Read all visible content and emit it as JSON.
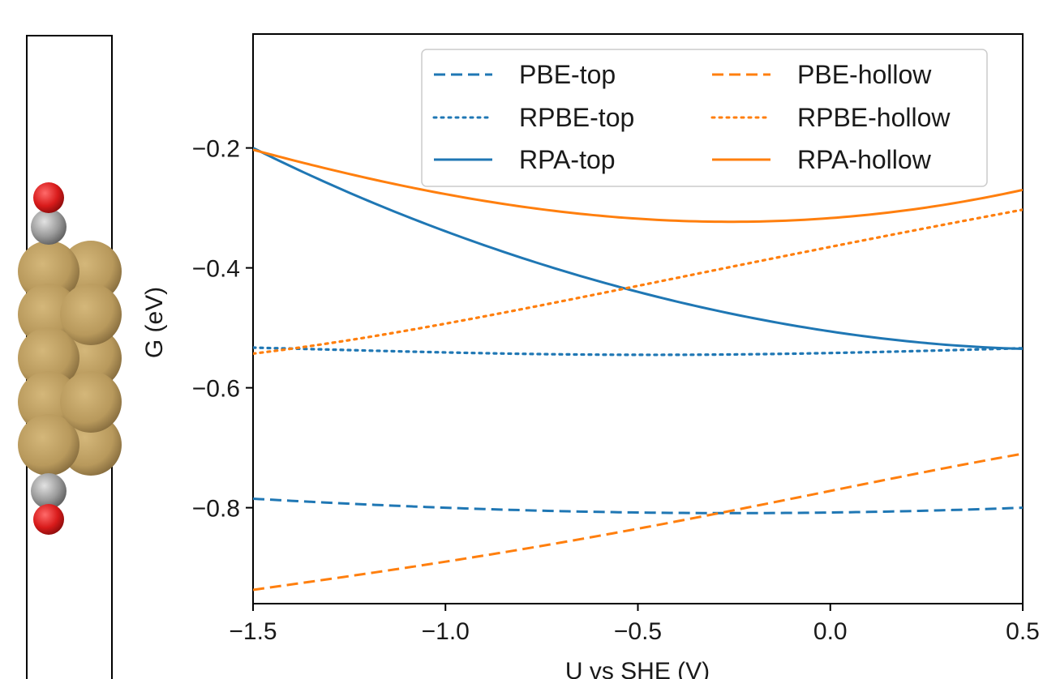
{
  "chart_data": {
    "type": "line",
    "title": "",
    "xlabel": "U vs SHE (V)",
    "ylabel": "G (eV)",
    "xlim": [
      -1.5,
      0.5
    ],
    "ylim": [
      -0.96,
      -0.01
    ],
    "x_ticks": [
      -1.5,
      -1.0,
      -0.5,
      0.0,
      0.5
    ],
    "x_tick_labels": [
      "−1.5",
      "−1.0",
      "−0.5",
      "0.0",
      "0.5"
    ],
    "y_ticks": [
      -0.2,
      -0.4,
      -0.6,
      -0.8
    ],
    "y_tick_labels": [
      "−0.2",
      "−0.4",
      "−0.6",
      "−0.8"
    ],
    "grid": false,
    "legend_position": "top-right",
    "legend_columns": 2,
    "x": [
      -1.5,
      -1.0,
      -0.5,
      0.0,
      0.5
    ],
    "series": [
      {
        "name": "PBE-top",
        "color": "#1f77b4",
        "style": "dashed",
        "values": [
          -0.785,
          -0.8,
          -0.808,
          -0.808,
          -0.8
        ]
      },
      {
        "name": "RPBE-top",
        "color": "#1f77b4",
        "style": "dotted",
        "values": [
          -0.533,
          -0.541,
          -0.545,
          -0.542,
          -0.534
        ]
      },
      {
        "name": "RPA-top",
        "color": "#1f77b4",
        "style": "solid",
        "values": [
          -0.2,
          -0.339,
          -0.44,
          -0.506,
          -0.535
        ]
      },
      {
        "name": "PBE-hollow",
        "color": "#ff7f0e",
        "style": "dashed",
        "values": [
          -0.937,
          -0.89,
          -0.835,
          -0.772,
          -0.71
        ]
      },
      {
        "name": "RPBE-hollow",
        "color": "#ff7f0e",
        "style": "dotted",
        "values": [
          -0.543,
          -0.493,
          -0.43,
          -0.365,
          -0.303
        ]
      },
      {
        "name": "RPA-hollow",
        "color": "#ff7f0e",
        "style": "solid",
        "values": [
          -0.203,
          -0.277,
          -0.318,
          -0.317,
          -0.27
        ]
      }
    ]
  },
  "inset": {
    "atoms": [
      {
        "element": "O",
        "color": "#d81b1b"
      },
      {
        "element": "C",
        "color": "#9a9a9a"
      },
      {
        "element": "Cu",
        "color": "#b8995c"
      },
      {
        "element": "C",
        "color": "#9a9a9a"
      },
      {
        "element": "O",
        "color": "#d81b1b"
      }
    ]
  }
}
